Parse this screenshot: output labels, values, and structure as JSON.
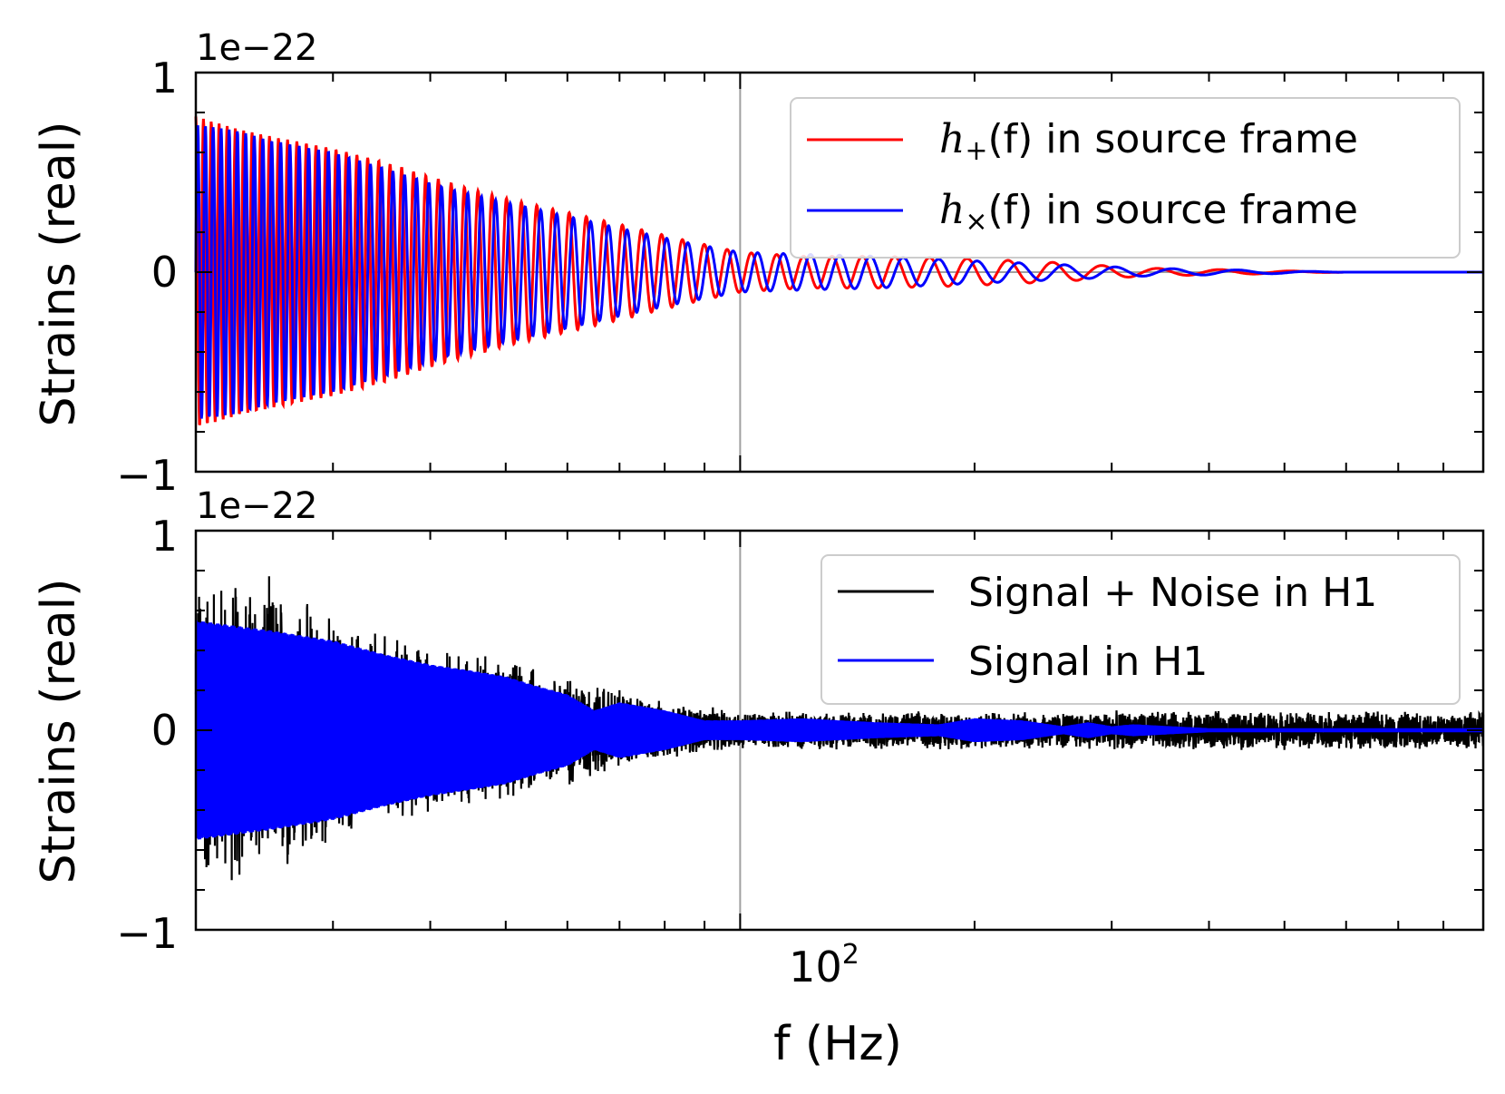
{
  "chart_data": [
    {
      "type": "line",
      "panel": "top",
      "ylabel": "Strains (real)",
      "xlabel": "",
      "offset_text": "1e−22",
      "xscale": "log",
      "xlim": [
        20,
        900
      ],
      "ylim": [
        -1,
        1
      ],
      "yticks": [
        -1,
        0,
        1
      ],
      "ytick_labels": [
        "−1",
        "0",
        "1"
      ],
      "xticks": [
        100
      ],
      "xtick_labels": [],
      "reference_lines": {
        "x": 100,
        "y": 0
      },
      "legend_placement": "upper right",
      "colors": {
        "plus": "#ff0000",
        "cross": "#0000ff"
      },
      "series": [
        {
          "name": "h+(f) in source frame",
          "label_math": "h",
          "label_sub": "+",
          "label_rest": "(f) in source frame",
          "color": "#ff0000",
          "x": [
            20,
            22.5,
            25,
            30,
            35,
            42,
            50,
            60,
            70,
            85,
            100,
            120,
            150,
            190,
            250,
            330,
            450,
            600,
            900
          ],
          "y": [
            0.78,
            0.72,
            0.68,
            0.62,
            0.55,
            0.45,
            0.37,
            0.3,
            0.24,
            0.16,
            0.1,
            0.08,
            0.08,
            0.07,
            0.05,
            0.02,
            0.01,
            0.0,
            0.0
          ]
        },
        {
          "name": "h×(f) in source frame",
          "label_math": "h",
          "label_sub": "×",
          "label_rest": "(f) in source frame",
          "color": "#0000ff",
          "x": [
            20,
            22.5,
            25,
            30,
            35,
            42,
            50,
            60,
            70,
            85,
            100,
            120,
            150,
            190,
            250,
            330,
            450,
            600,
            900
          ],
          "y": [
            0.74,
            0.71,
            0.66,
            0.6,
            0.52,
            0.42,
            0.35,
            0.28,
            0.22,
            0.15,
            0.1,
            0.09,
            0.08,
            0.06,
            0.04,
            0.02,
            0.01,
            0.0,
            0.0
          ]
        }
      ]
    },
    {
      "type": "line",
      "panel": "bottom",
      "ylabel": "Strains (real)",
      "xlabel": "f (Hz)",
      "offset_text": "1e−22",
      "xscale": "log",
      "xlim": [
        20,
        900
      ],
      "ylim": [
        -1,
        1
      ],
      "yticks": [
        -1,
        0,
        1
      ],
      "ytick_labels": [
        "−1",
        "0",
        "1"
      ],
      "xticks": [
        100
      ],
      "xtick_labels": [
        "10",
        "2"
      ],
      "reference_lines": {
        "x": 100
      },
      "legend_placement": "upper right",
      "colors": {
        "data": "#000000",
        "signal": "#0000ff"
      },
      "series": [
        {
          "name": "Signal + Noise in H1",
          "color": "#000000",
          "x": [
            20,
            25,
            30,
            40,
            50,
            60,
            80,
            100,
            150,
            200,
            300,
            500,
            900
          ],
          "y_envelope": [
            0.85,
            0.8,
            0.6,
            0.45,
            0.38,
            0.3,
            0.15,
            0.1,
            0.1,
            0.1,
            0.1,
            0.1,
            0.1
          ]
        },
        {
          "name": "Signal in H1",
          "color": "#0000ff",
          "x": [
            20,
            25,
            30,
            35,
            40,
            45,
            50,
            55,
            60,
            65,
            70,
            80,
            90,
            100,
            120,
            150,
            180,
            200,
            230,
            260,
            280,
            300,
            320,
            400,
            600,
            900
          ],
          "y_envelope": [
            0.55,
            0.5,
            0.45,
            0.38,
            0.33,
            0.3,
            0.27,
            0.22,
            0.18,
            0.1,
            0.14,
            0.1,
            0.05,
            0.05,
            0.06,
            0.04,
            0.03,
            0.06,
            0.05,
            0.02,
            0.04,
            0.02,
            0.03,
            0.01,
            0.01,
            0.01
          ]
        }
      ]
    }
  ]
}
